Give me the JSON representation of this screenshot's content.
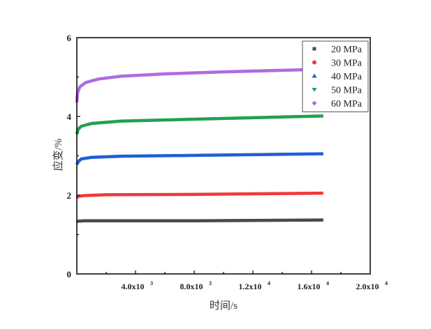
{
  "chart_data": {
    "type": "line",
    "title": "",
    "xlabel": "时间/s",
    "ylabel": "应变/%",
    "xlim": [
      0,
      20000
    ],
    "ylim": [
      0,
      6
    ],
    "x_ticks": [
      {
        "value": 4000,
        "mant": "4.0x10",
        "exp": "3"
      },
      {
        "value": 8000,
        "mant": "8.0x10",
        "exp": "3"
      },
      {
        "value": 12000,
        "mant": "1.2x10",
        "exp": "4"
      },
      {
        "value": 16000,
        "mant": "1.6x10",
        "exp": "4"
      },
      {
        "value": 20000,
        "mant": "2.0x10",
        "exp": "4"
      }
    ],
    "y_ticks": [
      "0",
      "2",
      "4",
      "6"
    ],
    "grid": false,
    "legend_position": "top-right",
    "series": [
      {
        "name": "20 MPa",
        "color": "#4a4a4a",
        "marker": "square",
        "x": [
          0,
          100,
          500,
          2000,
          8000,
          16800
        ],
        "y": [
          1.33,
          1.34,
          1.35,
          1.35,
          1.35,
          1.37
        ]
      },
      {
        "name": "30 MPa",
        "color": "#ee3b3b",
        "marker": "circle",
        "x": [
          0,
          100,
          500,
          2000,
          8000,
          16800
        ],
        "y": [
          1.93,
          1.97,
          1.99,
          2.01,
          2.02,
          2.05
        ]
      },
      {
        "name": "40 MPa",
        "color": "#1f5fd6",
        "marker": "triangle-up",
        "x": [
          0,
          100,
          300,
          1000,
          3000,
          8000,
          16800
        ],
        "y": [
          2.78,
          2.85,
          2.92,
          2.96,
          2.99,
          3.01,
          3.05
        ]
      },
      {
        "name": "50 MPa",
        "color": "#22a050",
        "marker": "triangle-down",
        "x": [
          0,
          100,
          300,
          1000,
          3000,
          8000,
          16800
        ],
        "y": [
          3.55,
          3.68,
          3.75,
          3.82,
          3.88,
          3.93,
          4.01
        ]
      },
      {
        "name": "60 MPa",
        "color": "#b06be0",
        "marker": "diamond",
        "x": [
          0,
          50,
          200,
          600,
          1500,
          3000,
          6000,
          10000,
          16800
        ],
        "y": [
          4.35,
          4.6,
          4.75,
          4.86,
          4.95,
          5.02,
          5.08,
          5.13,
          5.2
        ]
      }
    ]
  }
}
